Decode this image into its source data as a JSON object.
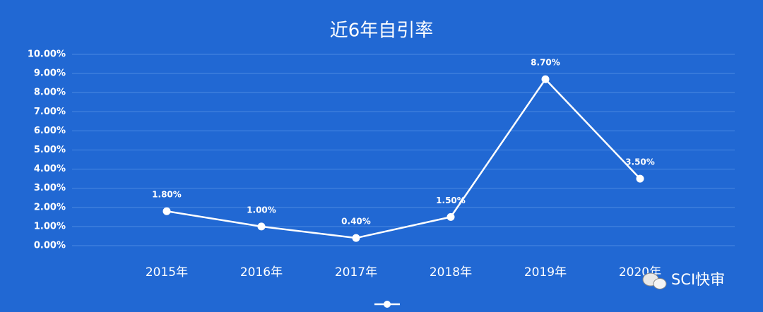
{
  "chart_data": {
    "type": "line",
    "title": "近6年自引率",
    "categories": [
      "2015年",
      "2016年",
      "2017年",
      "2018年",
      "2019年",
      "2020年"
    ],
    "series": [
      {
        "color": "#ffffff",
        "values": [
          1.8,
          1.0,
          0.4,
          1.5,
          8.7,
          3.5
        ],
        "value_labels": [
          "1.80%",
          "1.00%",
          "0.40%",
          "1.50%",
          "8.70%",
          "3.50%"
        ]
      }
    ],
    "ylim": [
      0,
      10
    ],
    "yticks": [
      {
        "value": 0,
        "label": "0.00%"
      },
      {
        "value": 1,
        "label": "1.00%"
      },
      {
        "value": 2,
        "label": "2.00%"
      },
      {
        "value": 3,
        "label": "3.00%"
      },
      {
        "value": 4,
        "label": "4.00%"
      },
      {
        "value": 5,
        "label": "5.00%"
      },
      {
        "value": 6,
        "label": "6.00%"
      },
      {
        "value": 7,
        "label": "7.00%"
      },
      {
        "value": 8,
        "label": "8.00%"
      },
      {
        "value": 9,
        "label": "9.00%"
      },
      {
        "value": 10,
        "label": "10.00%"
      }
    ],
    "grid": true
  },
  "watermark": "SCI快审"
}
